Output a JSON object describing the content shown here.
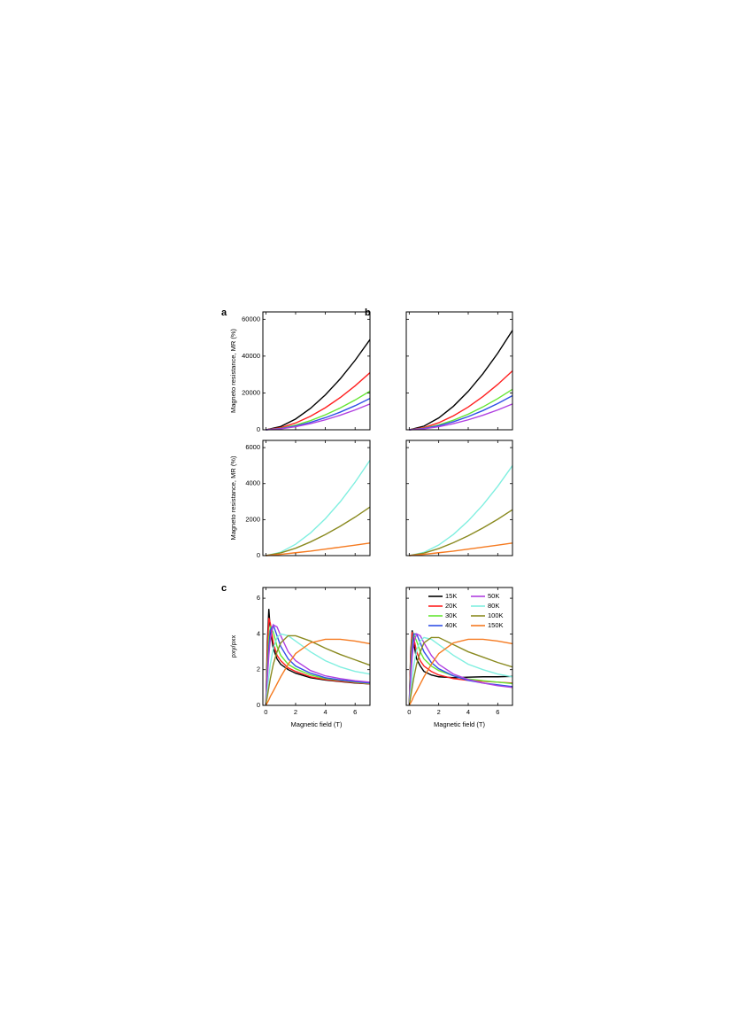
{
  "chart_data": [
    {
      "type": "line",
      "panel_label": "a",
      "y_label": "Magneto resistance, MR (%)",
      "xlim": [
        -0.2,
        7
      ],
      "xticks": [
        0,
        2,
        4,
        6
      ],
      "xtick_labels": false,
      "ylim": [
        0,
        64000
      ],
      "yticks": [
        0,
        20000,
        40000,
        60000
      ],
      "x": [
        0,
        1,
        2,
        3,
        4,
        5,
        6,
        7
      ],
      "series": [
        {
          "color": "#000000",
          "values": [
            0,
            1790,
            5830,
            11610,
            18930,
            27660,
            37710,
            49000
          ]
        },
        {
          "color": "#ff2020",
          "values": [
            0,
            1130,
            3690,
            7340,
            11980,
            17500,
            23850,
            31000
          ]
        },
        {
          "color": "#66e633",
          "values": [
            0,
            770,
            2500,
            4970,
            8110,
            11850,
            16160,
            21000
          ]
        },
        {
          "color": "#3050e6",
          "values": [
            0,
            620,
            2020,
            4030,
            6570,
            9590,
            13080,
            17000
          ]
        },
        {
          "color": "#b040e0",
          "values": [
            0,
            510,
            1660,
            3320,
            5410,
            7900,
            10770,
            14000
          ]
        }
      ]
    },
    {
      "type": "line",
      "panel_label": "b",
      "xlim": [
        -0.2,
        7
      ],
      "xticks": [
        0,
        2,
        4,
        6
      ],
      "xtick_labels": false,
      "ylim": [
        0,
        64000
      ],
      "yticks": [
        0,
        20000,
        40000,
        60000
      ],
      "ytick_labels": false,
      "x": [
        0,
        1,
        2,
        3,
        4,
        5,
        6,
        7
      ],
      "series": [
        {
          "color": "#000000",
          "values": [
            0,
            1980,
            6420,
            12790,
            20860,
            30480,
            41550,
            54000
          ]
        },
        {
          "color": "#ff2020",
          "values": [
            0,
            1170,
            3800,
            7580,
            12360,
            18060,
            24620,
            32000
          ]
        },
        {
          "color": "#66e633",
          "values": [
            0,
            810,
            2620,
            5210,
            8500,
            12420,
            16930,
            22000
          ]
        },
        {
          "color": "#3050e6",
          "values": [
            0,
            680,
            2200,
            4380,
            7150,
            10440,
            14240,
            18500
          ]
        },
        {
          "color": "#b040e0",
          "values": [
            0,
            510,
            1660,
            3320,
            5410,
            7900,
            10770,
            14000
          ]
        }
      ]
    },
    {
      "type": "line",
      "y_label": "Magneto resistance, MR (%)",
      "xlim": [
        -0.2,
        7
      ],
      "xticks": [
        0,
        2,
        4,
        6
      ],
      "xtick_labels": false,
      "ylim": [
        0,
        6400
      ],
      "yticks": [
        0,
        2000,
        4000,
        6000
      ],
      "x": [
        0,
        1,
        2,
        3,
        4,
        5,
        6,
        7
      ],
      "series": [
        {
          "color": "#80efe0",
          "values": [
            0,
            190,
            630,
            1260,
            2050,
            2990,
            4080,
            5300
          ]
        },
        {
          "color": "#8a8a20",
          "values": [
            0,
            150,
            410,
            760,
            1170,
            1630,
            2140,
            2700
          ]
        },
        {
          "color": "#f57a20",
          "values": [
            0,
            70,
            160,
            250,
            360,
            470,
            580,
            700
          ]
        }
      ]
    },
    {
      "type": "line",
      "xlim": [
        -0.2,
        7
      ],
      "xticks": [
        0,
        2,
        4,
        6
      ],
      "xtick_labels": false,
      "ylim": [
        0,
        6400
      ],
      "yticks": [
        0,
        2000,
        4000,
        6000
      ],
      "ytick_labels": false,
      "x": [
        0,
        1,
        2,
        3,
        4,
        5,
        6,
        7
      ],
      "series": [
        {
          "color": "#80efe0",
          "values": [
            0,
            180,
            590,
            1180,
            1930,
            2820,
            3850,
            5000
          ]
        },
        {
          "color": "#8a8a20",
          "values": [
            0,
            140,
            390,
            720,
            1100,
            1540,
            2020,
            2550
          ]
        },
        {
          "color": "#f57a20",
          "values": [
            0,
            70,
            160,
            250,
            360,
            470,
            580,
            700
          ]
        }
      ]
    },
    {
      "type": "line",
      "panel_label": "c",
      "y_label": "ρxy/ρxx",
      "x_label": "Magnetic field (T)",
      "xlim": [
        -0.2,
        7
      ],
      "xticks": [
        0,
        2,
        4,
        6
      ],
      "ylim": [
        0,
        6.6
      ],
      "yticks": [
        0,
        2,
        4,
        6
      ],
      "x": [
        0,
        0.1,
        0.2,
        0.3,
        0.5,
        0.75,
        1,
        1.5,
        2,
        3,
        4,
        5,
        6,
        7
      ],
      "series": [
        {
          "color": "#000000",
          "values": [
            0,
            3.5,
            5.4,
            4.2,
            3.2,
            2.6,
            2.3,
            2.0,
            1.8,
            1.55,
            1.42,
            1.33,
            1.25,
            1.2
          ]
        },
        {
          "color": "#ff2020",
          "values": [
            0,
            3.0,
            4.9,
            4.6,
            3.5,
            2.8,
            2.5,
            2.1,
            1.9,
            1.6,
            1.45,
            1.35,
            1.27,
            1.2
          ]
        },
        {
          "color": "#66e633",
          "values": [
            0,
            2.2,
            3.8,
            4.4,
            4.1,
            3.3,
            2.8,
            2.3,
            2.05,
            1.7,
            1.5,
            1.4,
            1.3,
            1.22
          ]
        },
        {
          "color": "#3050e6",
          "values": [
            0,
            1.8,
            3.2,
            4.2,
            4.5,
            3.9,
            3.3,
            2.6,
            2.2,
            1.8,
            1.55,
            1.42,
            1.33,
            1.25
          ]
        },
        {
          "color": "#b040e0",
          "values": [
            0,
            1.5,
            2.8,
            3.7,
            4.5,
            4.4,
            3.9,
            3.0,
            2.5,
            1.95,
            1.65,
            1.5,
            1.38,
            1.3
          ]
        },
        {
          "color": "#80efe0",
          "values": [
            0,
            0.8,
            1.6,
            2.3,
            3.2,
            3.8,
            4.0,
            3.9,
            3.6,
            3.0,
            2.5,
            2.15,
            1.9,
            1.75
          ]
        },
        {
          "color": "#8a8a20",
          "values": [
            0,
            0.5,
            1.0,
            1.5,
            2.3,
            3.0,
            3.5,
            3.9,
            3.9,
            3.6,
            3.2,
            2.85,
            2.55,
            2.25
          ]
        },
        {
          "color": "#f57a20",
          "values": [
            0,
            0.15,
            0.3,
            0.5,
            0.8,
            1.2,
            1.6,
            2.3,
            2.9,
            3.5,
            3.7,
            3.7,
            3.6,
            3.45
          ]
        }
      ]
    },
    {
      "type": "line",
      "x_label": "Magnetic field (T)",
      "legend": "upper right",
      "xlim": [
        -0.2,
        7
      ],
      "xticks": [
        0,
        2,
        4,
        6
      ],
      "ylim": [
        0,
        6.6
      ],
      "yticks": [
        0,
        2,
        4,
        6
      ],
      "ytick_labels": false,
      "x": [
        0,
        0.1,
        0.2,
        0.3,
        0.5,
        0.75,
        1,
        1.5,
        2,
        3,
        4,
        5,
        6,
        7
      ],
      "series": [
        {
          "name": "15K",
          "color": "#000000",
          "values": [
            0,
            3.0,
            4.2,
            3.5,
            2.6,
            2.2,
            1.9,
            1.7,
            1.6,
            1.55,
            1.58,
            1.6,
            1.6,
            1.62
          ]
        },
        {
          "name": "20K",
          "color": "#ff2020",
          "values": [
            0,
            2.8,
            4.1,
            3.8,
            3.0,
            2.5,
            2.2,
            1.9,
            1.7,
            1.5,
            1.4,
            1.35,
            1.3,
            1.25
          ]
        },
        {
          "name": "30K",
          "color": "#66e633",
          "values": [
            0,
            2.2,
            3.6,
            4.0,
            3.6,
            3.0,
            2.6,
            2.2,
            1.95,
            1.65,
            1.48,
            1.38,
            1.3,
            1.22
          ]
        },
        {
          "name": "40K",
          "color": "#3050e6",
          "values": [
            0,
            1.8,
            3.2,
            4.0,
            4.0,
            3.5,
            3.0,
            2.4,
            2.05,
            1.65,
            1.4,
            1.25,
            1.15,
            1.05
          ]
        },
        {
          "name": "50K",
          "color": "#b040e0",
          "values": [
            0,
            1.5,
            2.7,
            3.5,
            4.0,
            3.9,
            3.5,
            2.8,
            2.3,
            1.75,
            1.45,
            1.25,
            1.1,
            1.0
          ]
        },
        {
          "name": "80K",
          "color": "#80efe0",
          "values": [
            0,
            0.8,
            1.5,
            2.2,
            3.1,
            3.6,
            3.8,
            3.7,
            3.4,
            2.8,
            2.3,
            2.0,
            1.75,
            1.6
          ]
        },
        {
          "name": "100K",
          "color": "#8a8a20",
          "values": [
            0,
            0.5,
            1.0,
            1.5,
            2.3,
            3.0,
            3.5,
            3.8,
            3.8,
            3.4,
            3.0,
            2.7,
            2.4,
            2.15
          ]
        },
        {
          "name": "150K",
          "color": "#f57a20",
          "values": [
            0,
            0.15,
            0.3,
            0.5,
            0.8,
            1.2,
            1.6,
            2.3,
            2.9,
            3.5,
            3.7,
            3.7,
            3.6,
            3.45
          ]
        }
      ]
    }
  ]
}
